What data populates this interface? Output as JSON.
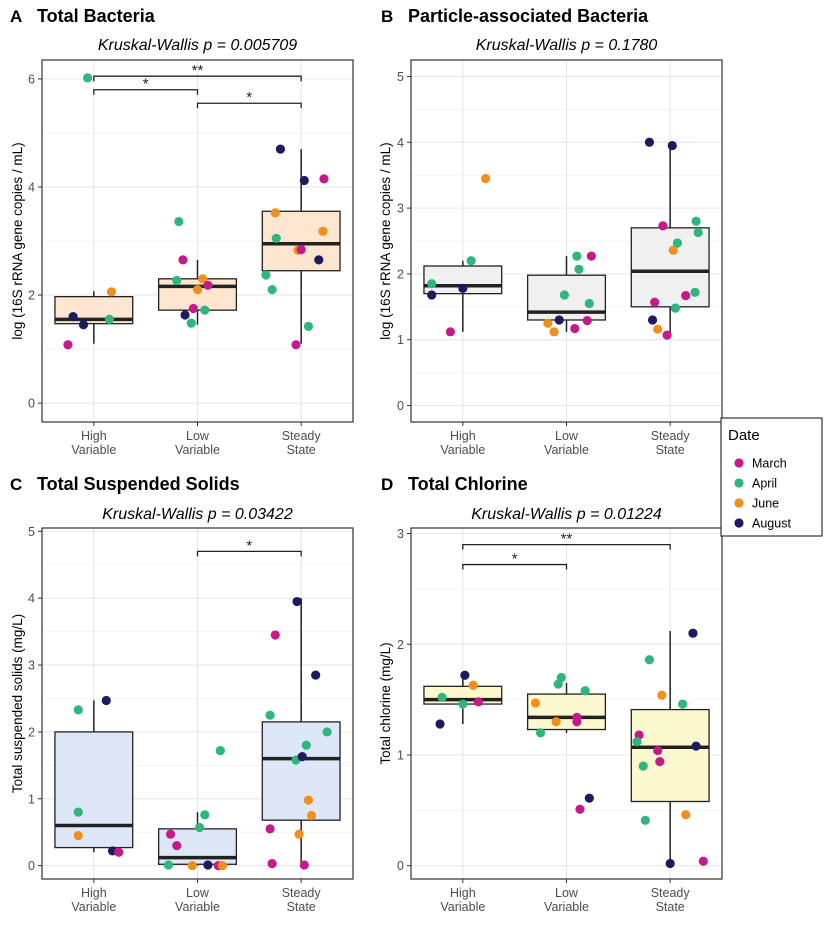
{
  "colors": {
    "March": "#c51b8a",
    "April": "#2eb67d",
    "June": "#f28e1c",
    "August": "#1b1b5e",
    "box_orange": "#fde6cf",
    "box_grey": "#f0f0f0",
    "box_blue": "#dde7f7",
    "box_yellow": "#fdf9cf"
  },
  "legend": {
    "title": "Date",
    "items": [
      {
        "label": "March",
        "color": "#c51b8a"
      },
      {
        "label": "April",
        "color": "#2eb67d"
      },
      {
        "label": "June",
        "color": "#f28e1c"
      },
      {
        "label": "August",
        "color": "#1b1b5e"
      }
    ]
  },
  "chart_data": [
    {
      "type": "box",
      "panel_letter": "A",
      "title": "Total Bacteria",
      "subtitle_test": "Kruskal-Wallis",
      "subtitle_p": "p = 0.005709",
      "xlabel": "",
      "ylabel": "log (16S rRNA gene copies / mL)",
      "ylim": [
        -0.35,
        6.35
      ],
      "yticks": [
        "0",
        "2",
        "4",
        "6"
      ],
      "yticks_values": [
        0,
        2,
        4,
        6
      ],
      "categories": [
        {
          "line1": "High",
          "line2": "Variable"
        },
        {
          "line1": "Low",
          "line2": "Variable"
        },
        {
          "line1": "Steady",
          "line2": "State"
        }
      ],
      "box_fill": "#fde6cf",
      "boxes": [
        {
          "min": 1.1,
          "q1": 1.47,
          "median": 1.55,
          "q3": 1.97,
          "max": 2.07
        },
        {
          "min": 1.45,
          "q1": 1.72,
          "median": 2.16,
          "q3": 2.3,
          "max": 2.65
        },
        {
          "min": 1.1,
          "q1": 2.45,
          "median": 2.95,
          "q3": 3.55,
          "max": 4.7
        }
      ],
      "points": [
        {
          "g": 0,
          "dx": -0.25,
          "y": 1.08,
          "m": "March"
        },
        {
          "g": 0,
          "dx": -0.2,
          "y": 1.6,
          "m": "August"
        },
        {
          "g": 0,
          "dx": -0.1,
          "y": 1.45,
          "m": "August"
        },
        {
          "g": 0,
          "dx": -0.06,
          "y": 6.02,
          "m": "April"
        },
        {
          "g": 0,
          "dx": 0.15,
          "y": 1.55,
          "m": "April"
        },
        {
          "g": 0,
          "dx": 0.17,
          "y": 2.06,
          "m": "June"
        },
        {
          "g": 1,
          "dx": -0.18,
          "y": 3.36,
          "m": "April"
        },
        {
          "g": 1,
          "dx": -0.14,
          "y": 2.65,
          "m": "March"
        },
        {
          "g": 1,
          "dx": -0.2,
          "y": 2.27,
          "m": "April"
        },
        {
          "g": 1,
          "dx": -0.12,
          "y": 1.63,
          "m": "August"
        },
        {
          "g": 1,
          "dx": -0.06,
          "y": 1.48,
          "m": "April"
        },
        {
          "g": 1,
          "dx": -0.04,
          "y": 1.75,
          "m": "March"
        },
        {
          "g": 1,
          "dx": 0.0,
          "y": 2.1,
          "m": "June"
        },
        {
          "g": 1,
          "dx": 0.05,
          "y": 2.3,
          "m": "June"
        },
        {
          "g": 1,
          "dx": 0.07,
          "y": 1.72,
          "m": "April"
        },
        {
          "g": 1,
          "dx": 0.1,
          "y": 2.18,
          "m": "March"
        },
        {
          "g": 2,
          "dx": -0.34,
          "y": 2.37,
          "m": "April"
        },
        {
          "g": 2,
          "dx": -0.28,
          "y": 2.1,
          "m": "April"
        },
        {
          "g": 2,
          "dx": -0.25,
          "y": 3.52,
          "m": "June"
        },
        {
          "g": 2,
          "dx": -0.24,
          "y": 3.05,
          "m": "April"
        },
        {
          "g": 2,
          "dx": -0.05,
          "y": 1.08,
          "m": "March"
        },
        {
          "g": 2,
          "dx": -0.03,
          "y": 2.83,
          "m": "June"
        },
        {
          "g": 2,
          "dx": 0.0,
          "y": 2.84,
          "m": "March"
        },
        {
          "g": 2,
          "dx": 0.03,
          "y": 4.12,
          "m": "August"
        },
        {
          "g": 2,
          "dx": 0.07,
          "y": 1.42,
          "m": "April"
        },
        {
          "g": 2,
          "dx": 0.17,
          "y": 2.65,
          "m": "August"
        },
        {
          "g": 2,
          "dx": 0.21,
          "y": 3.18,
          "m": "June"
        },
        {
          "g": 2,
          "dx": 0.22,
          "y": 4.15,
          "m": "March"
        },
        {
          "g": 2,
          "dx": -0.2,
          "y": 4.7,
          "m": "August"
        }
      ],
      "brackets": [
        {
          "from": 0,
          "to": 2,
          "y": 6.05,
          "label": "**"
        },
        {
          "from": 0,
          "to": 1,
          "y": 5.8,
          "label": "*"
        },
        {
          "from": 1,
          "to": 2,
          "y": 5.55,
          "label": "*"
        }
      ]
    },
    {
      "type": "box",
      "panel_letter": "B",
      "title": "Particle-associated Bacteria",
      "subtitle_test": "Kruskal-Wallis",
      "subtitle_p": "p = 0.1780",
      "xlabel": "",
      "ylabel": "log (16S rRNA gene copies / mL)",
      "ylim": [
        -0.25,
        5.25
      ],
      "yticks": [
        "0",
        "1",
        "2",
        "3",
        "4",
        "5"
      ],
      "yticks_values": [
        0,
        1,
        2,
        3,
        4,
        5
      ],
      "categories": [
        {
          "line1": "High",
          "line2": "Variable"
        },
        {
          "line1": "Low",
          "line2": "Variable"
        },
        {
          "line1": "Steady",
          "line2": "State"
        }
      ],
      "box_fill": "#f0f0f0",
      "boxes": [
        {
          "min": 1.12,
          "q1": 1.7,
          "median": 1.82,
          "q3": 2.12,
          "max": 2.2
        },
        {
          "min": 1.12,
          "q1": 1.3,
          "median": 1.42,
          "q3": 1.98,
          "max": 2.27
        },
        {
          "min": 1.07,
          "q1": 1.5,
          "median": 2.04,
          "q3": 2.7,
          "max": 4.0
        }
      ],
      "points": [
        {
          "g": 0,
          "dx": -0.3,
          "y": 1.85,
          "m": "April"
        },
        {
          "g": 0,
          "dx": -0.3,
          "y": 1.68,
          "m": "August"
        },
        {
          "g": 0,
          "dx": -0.12,
          "y": 1.12,
          "m": "March"
        },
        {
          "g": 0,
          "dx": 0.0,
          "y": 1.78,
          "m": "August"
        },
        {
          "g": 0,
          "dx": 0.08,
          "y": 2.2,
          "m": "April"
        },
        {
          "g": 0,
          "dx": 0.22,
          "y": 3.45,
          "m": "June"
        },
        {
          "g": 1,
          "dx": -0.18,
          "y": 1.25,
          "m": "June"
        },
        {
          "g": 1,
          "dx": -0.12,
          "y": 1.12,
          "m": "June"
        },
        {
          "g": 1,
          "dx": -0.07,
          "y": 1.3,
          "m": "August"
        },
        {
          "g": 1,
          "dx": -0.02,
          "y": 1.68,
          "m": "April"
        },
        {
          "g": 1,
          "dx": 0.08,
          "y": 1.17,
          "m": "March"
        },
        {
          "g": 1,
          "dx": 0.1,
          "y": 2.27,
          "m": "April"
        },
        {
          "g": 1,
          "dx": 0.12,
          "y": 2.07,
          "m": "April"
        },
        {
          "g": 1,
          "dx": 0.2,
          "y": 1.29,
          "m": "March"
        },
        {
          "g": 1,
          "dx": 0.22,
          "y": 1.55,
          "m": "April"
        },
        {
          "g": 1,
          "dx": 0.24,
          "y": 2.27,
          "m": "March"
        },
        {
          "g": 2,
          "dx": -0.2,
          "y": 4.0,
          "m": "August"
        },
        {
          "g": 2,
          "dx": -0.17,
          "y": 1.3,
          "m": "August"
        },
        {
          "g": 2,
          "dx": -0.15,
          "y": 1.57,
          "m": "March"
        },
        {
          "g": 2,
          "dx": -0.12,
          "y": 1.16,
          "m": "June"
        },
        {
          "g": 2,
          "dx": -0.07,
          "y": 2.73,
          "m": "March"
        },
        {
          "g": 2,
          "dx": -0.03,
          "y": 1.07,
          "m": "March"
        },
        {
          "g": 2,
          "dx": 0.03,
          "y": 2.36,
          "m": "June"
        },
        {
          "g": 2,
          "dx": 0.05,
          "y": 1.48,
          "m": "April"
        },
        {
          "g": 2,
          "dx": 0.07,
          "y": 2.47,
          "m": "April"
        },
        {
          "g": 2,
          "dx": 0.02,
          "y": 3.95,
          "m": "August"
        },
        {
          "g": 2,
          "dx": 0.15,
          "y": 1.67,
          "m": "March"
        },
        {
          "g": 2,
          "dx": 0.24,
          "y": 1.72,
          "m": "April"
        },
        {
          "g": 2,
          "dx": 0.25,
          "y": 2.8,
          "m": "April"
        },
        {
          "g": 2,
          "dx": 0.27,
          "y": 2.63,
          "m": "April"
        }
      ],
      "brackets": []
    },
    {
      "type": "box",
      "panel_letter": "C",
      "title": "Total Suspended Solids",
      "subtitle_test": "Kruskal-Wallis",
      "subtitle_p": "p = 0.03422",
      "xlabel": "",
      "ylabel": "Total suspended solids (mg/L)",
      "ylim": [
        -0.2,
        5.05
      ],
      "yticks": [
        "0",
        "1",
        "2",
        "3",
        "4",
        "5"
      ],
      "yticks_values": [
        0,
        1,
        2,
        3,
        4,
        5
      ],
      "categories": [
        {
          "line1": "High",
          "line2": "Variable"
        },
        {
          "line1": "Low",
          "line2": "Variable"
        },
        {
          "line1": "Steady",
          "line2": "State"
        }
      ],
      "box_fill": "#dde7f7",
      "boxes": [
        {
          "min": 0.2,
          "q1": 0.27,
          "median": 0.6,
          "q3": 2.0,
          "max": 2.47
        },
        {
          "min": 0.0,
          "q1": 0.02,
          "median": 0.12,
          "q3": 0.55,
          "max": 0.8
        },
        {
          "min": 0.0,
          "q1": 0.68,
          "median": 1.6,
          "q3": 2.15,
          "max": 4.0
        }
      ],
      "points": [
        {
          "g": 0,
          "dx": -0.15,
          "y": 2.33,
          "m": "April"
        },
        {
          "g": 0,
          "dx": -0.15,
          "y": 0.8,
          "m": "April"
        },
        {
          "g": 0,
          "dx": -0.15,
          "y": 0.45,
          "m": "June"
        },
        {
          "g": 0,
          "dx": 0.12,
          "y": 2.47,
          "m": "August"
        },
        {
          "g": 0,
          "dx": 0.18,
          "y": 0.22,
          "m": "August"
        },
        {
          "g": 0,
          "dx": 0.24,
          "y": 0.2,
          "m": "March"
        },
        {
          "g": 1,
          "dx": -0.28,
          "y": 0.01,
          "m": "April"
        },
        {
          "g": 1,
          "dx": -0.26,
          "y": 0.47,
          "m": "March"
        },
        {
          "g": 1,
          "dx": -0.2,
          "y": 0.3,
          "m": "March"
        },
        {
          "g": 1,
          "dx": -0.05,
          "y": 0.0,
          "m": "June"
        },
        {
          "g": 1,
          "dx": 0.02,
          "y": 0.57,
          "m": "April"
        },
        {
          "g": 1,
          "dx": 0.07,
          "y": 0.76,
          "m": "April"
        },
        {
          "g": 1,
          "dx": 0.1,
          "y": 0.01,
          "m": "August"
        },
        {
          "g": 1,
          "dx": 0.2,
          "y": 0.0,
          "m": "March"
        },
        {
          "g": 1,
          "dx": 0.22,
          "y": 1.72,
          "m": "April"
        },
        {
          "g": 1,
          "dx": 0.24,
          "y": 0.0,
          "m": "June"
        },
        {
          "g": 2,
          "dx": -0.3,
          "y": 2.25,
          "m": "April"
        },
        {
          "g": 2,
          "dx": -0.3,
          "y": 0.55,
          "m": "March"
        },
        {
          "g": 2,
          "dx": -0.28,
          "y": 0.03,
          "m": "March"
        },
        {
          "g": 2,
          "dx": -0.25,
          "y": 3.45,
          "m": "March"
        },
        {
          "g": 2,
          "dx": -0.05,
          "y": 1.58,
          "m": "April"
        },
        {
          "g": 2,
          "dx": -0.04,
          "y": 3.95,
          "m": "August"
        },
        {
          "g": 2,
          "dx": -0.02,
          "y": 0.47,
          "m": "June"
        },
        {
          "g": 2,
          "dx": 0.01,
          "y": 1.63,
          "m": "August"
        },
        {
          "g": 2,
          "dx": 0.03,
          "y": 0.01,
          "m": "March"
        },
        {
          "g": 2,
          "dx": 0.05,
          "y": 1.8,
          "m": "April"
        },
        {
          "g": 2,
          "dx": 0.07,
          "y": 0.98,
          "m": "June"
        },
        {
          "g": 2,
          "dx": 0.1,
          "y": 0.75,
          "m": "June"
        },
        {
          "g": 2,
          "dx": 0.14,
          "y": 2.85,
          "m": "August"
        },
        {
          "g": 2,
          "dx": 0.25,
          "y": 2.0,
          "m": "April"
        }
      ],
      "brackets": [
        {
          "from": 1,
          "to": 2,
          "y": 4.7,
          "label": "*"
        }
      ]
    },
    {
      "type": "box",
      "panel_letter": "D",
      "title": "Total Chlorine",
      "subtitle_test": "Kruskal-Wallis",
      "subtitle_p": "p = 0.01224",
      "xlabel": "",
      "ylabel": "Total chlorine (mg/L)",
      "ylim": [
        -0.12,
        3.05
      ],
      "yticks": [
        "0",
        "1",
        "2",
        "3"
      ],
      "yticks_values": [
        0,
        1,
        2,
        3
      ],
      "categories": [
        {
          "line1": "High",
          "line2": "Variable"
        },
        {
          "line1": "Low",
          "line2": "Variable"
        },
        {
          "line1": "Steady",
          "line2": "State"
        }
      ],
      "box_fill": "#fdf9cf",
      "boxes": [
        {
          "min": 1.28,
          "q1": 1.46,
          "median": 1.5,
          "q3": 1.62,
          "max": 1.72
        },
        {
          "min": 1.2,
          "q1": 1.23,
          "median": 1.34,
          "q3": 1.55,
          "max": 1.65
        },
        {
          "min": 0.02,
          "q1": 0.58,
          "median": 1.07,
          "q3": 1.41,
          "max": 2.12
        }
      ],
      "points": [
        {
          "g": 0,
          "dx": -0.22,
          "y": 1.28,
          "m": "August"
        },
        {
          "g": 0,
          "dx": -0.2,
          "y": 1.52,
          "m": "April"
        },
        {
          "g": 0,
          "dx": 0.0,
          "y": 1.46,
          "m": "April"
        },
        {
          "g": 0,
          "dx": 0.02,
          "y": 1.72,
          "m": "August"
        },
        {
          "g": 0,
          "dx": 0.1,
          "y": 1.63,
          "m": "June"
        },
        {
          "g": 0,
          "dx": 0.15,
          "y": 1.48,
          "m": "March"
        },
        {
          "g": 1,
          "dx": -0.25,
          "y": 1.2,
          "m": "April"
        },
        {
          "g": 1,
          "dx": -0.3,
          "y": 1.47,
          "m": "June"
        },
        {
          "g": 1,
          "dx": -0.1,
          "y": 1.3,
          "m": "June"
        },
        {
          "g": 1,
          "dx": -0.08,
          "y": 1.64,
          "m": "April"
        },
        {
          "g": 1,
          "dx": -0.05,
          "y": 1.7,
          "m": "April"
        },
        {
          "g": 1,
          "dx": 0.1,
          "y": 1.3,
          "m": "March"
        },
        {
          "g": 1,
          "dx": 0.1,
          "y": 1.34,
          "m": "March"
        },
        {
          "g": 1,
          "dx": 0.13,
          "y": 0.51,
          "m": "March"
        },
        {
          "g": 1,
          "dx": 0.18,
          "y": 1.58,
          "m": "April"
        },
        {
          "g": 1,
          "dx": 0.22,
          "y": 0.61,
          "m": "August"
        },
        {
          "g": 2,
          "dx": -0.3,
          "y": 1.18,
          "m": "March"
        },
        {
          "g": 2,
          "dx": -0.32,
          "y": 1.12,
          "m": "April"
        },
        {
          "g": 2,
          "dx": -0.26,
          "y": 0.9,
          "m": "April"
        },
        {
          "g": 2,
          "dx": -0.24,
          "y": 0.41,
          "m": "April"
        },
        {
          "g": 2,
          "dx": -0.2,
          "y": 1.86,
          "m": "April"
        },
        {
          "g": 2,
          "dx": -0.12,
          "y": 1.04,
          "m": "March"
        },
        {
          "g": 2,
          "dx": -0.1,
          "y": 0.94,
          "m": "March"
        },
        {
          "g": 2,
          "dx": -0.08,
          "y": 1.54,
          "m": "June"
        },
        {
          "g": 2,
          "dx": 0.12,
          "y": 1.46,
          "m": "April"
        },
        {
          "g": 2,
          "dx": 0.15,
          "y": 0.46,
          "m": "June"
        },
        {
          "g": 2,
          "dx": 0.22,
          "y": 2.1,
          "m": "August"
        },
        {
          "g": 2,
          "dx": 0.25,
          "y": 1.08,
          "m": "August"
        },
        {
          "g": 2,
          "dx": 0.32,
          "y": 0.04,
          "m": "March"
        },
        {
          "g": 2,
          "dx": 0.0,
          "y": 0.02,
          "m": "August"
        }
      ],
      "brackets": [
        {
          "from": 0,
          "to": 2,
          "y": 2.9,
          "label": "**"
        },
        {
          "from": 0,
          "to": 1,
          "y": 2.72,
          "label": "*"
        }
      ]
    }
  ]
}
